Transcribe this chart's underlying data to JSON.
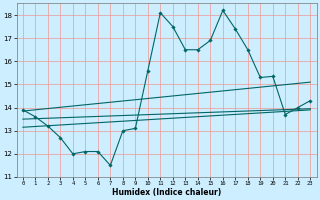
{
  "xlabel": "Humidex (Indice chaleur)",
  "bg_color": "#cceeff",
  "grid_color": "#ee9999",
  "line_color": "#006666",
  "x_data": [
    0,
    1,
    2,
    3,
    4,
    5,
    6,
    7,
    8,
    9,
    10,
    11,
    12,
    13,
    14,
    15,
    16,
    17,
    18,
    19,
    20,
    21,
    22,
    23
  ],
  "y_main": [
    13.9,
    13.6,
    13.2,
    12.7,
    12.0,
    12.1,
    12.1,
    11.5,
    13.0,
    13.1,
    15.6,
    18.1,
    17.5,
    16.5,
    16.5,
    16.9,
    18.2,
    17.4,
    16.5,
    15.3,
    15.35,
    13.7,
    14.0,
    14.3
  ],
  "trend1_x": [
    0,
    23
  ],
  "trend1_y": [
    13.85,
    15.1
  ],
  "trend2_x": [
    0,
    23
  ],
  "trend2_y": [
    13.15,
    13.9
  ],
  "trend3_x": [
    0,
    23
  ],
  "trend3_y": [
    13.5,
    13.95
  ],
  "ylim": [
    11,
    18.5
  ],
  "xlim": [
    -0.5,
    23.5
  ],
  "yticks": [
    11,
    12,
    13,
    14,
    15,
    16,
    17,
    18
  ],
  "xticks": [
    0,
    1,
    2,
    3,
    4,
    5,
    6,
    7,
    8,
    9,
    10,
    11,
    12,
    13,
    14,
    15,
    16,
    17,
    18,
    19,
    20,
    21,
    22,
    23
  ]
}
